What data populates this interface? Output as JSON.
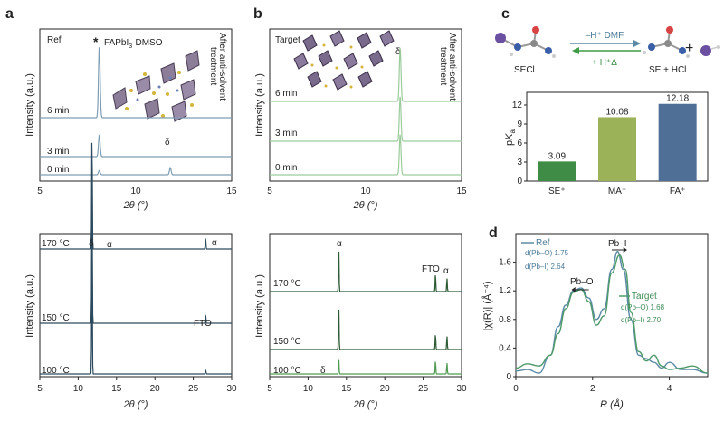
{
  "panels": {
    "a": {
      "letter": "a",
      "top": {
        "corner_label": "Ref",
        "peak_star": "*",
        "peak_label": "FAPbI",
        "peak_sub": "3",
        "peak_label_tail": "·DMSO",
        "delta": "δ",
        "side_text_1": "After anti-solvent",
        "side_text_2": "treatment",
        "traces": [
          "6 min",
          "3 min",
          "0 min"
        ],
        "xlabel": "2θ (°)",
        "ylabel": "Intensity (a.u.)",
        "xticks": [
          "5",
          "10",
          "15"
        ]
      },
      "bottom": {
        "traces": [
          "170 °C",
          "150 °C",
          "100 °C"
        ],
        "annotations": {
          "delta": "δ",
          "alpha1": "α",
          "alpha2": "α",
          "fto": "FTO"
        },
        "xlabel": "2θ (°)",
        "ylabel": "Intensity (a.u.)",
        "xticks": [
          "5",
          "10",
          "15",
          "20",
          "25",
          "30"
        ]
      }
    },
    "b": {
      "letter": "b",
      "top": {
        "corner_label": "Target",
        "delta": "δ",
        "side_text_1": "After anti-solvent",
        "side_text_2": "treatment",
        "traces": [
          "6 min",
          "3 min",
          "0 min"
        ],
        "xlabel": "2θ (°)",
        "ylabel": "Intensity (a.u.)",
        "xticks": [
          "5",
          "10",
          "15"
        ]
      },
      "bottom": {
        "traces": [
          "170 °C",
          "150 °C",
          "100 °C"
        ],
        "annotations": {
          "alpha1": "α",
          "fto": "FTO",
          "alpha2": "α",
          "delta": "δ"
        },
        "xlabel": "2θ (°)",
        "ylabel": "Intensity (a.u.)",
        "xticks": [
          "5",
          "10",
          "15",
          "20",
          "25",
          "30"
        ]
      }
    },
    "c": {
      "letter": "c",
      "reaction": {
        "forward": "–H⁺ DMF",
        "backward": "+ H⁺Δ",
        "left": "SECl",
        "right": "SE + HCl",
        "plus": "+"
      },
      "ylabel": "pKa"
    },
    "d": {
      "letter": "d",
      "ref_label": "Ref",
      "target_label": "Target",
      "ref_d1_label": "d(Pb–O) 1.75",
      "ref_d2_label": "d(Pb–I) 2.64",
      "tgt_d1_label": "d(Pb–O) 1.68",
      "tgt_d2_label": "d(Pb–I) 2.70",
      "peak1": "Pb–O",
      "peak2": "Pb–I",
      "xlabel": "R (Å)",
      "ylabel": "|χ(R)| (Å⁻⁴)",
      "xticks": [
        "0",
        "2",
        "4"
      ],
      "yticks": [
        "0",
        "0.4",
        "0.8",
        "1.2",
        "1.6"
      ]
    }
  },
  "chart_data": [
    {
      "id": "a-top",
      "type": "line",
      "title": "",
      "xlabel": "2θ (°)",
      "ylabel": "Intensity (a.u.)",
      "xlim": [
        5,
        15
      ],
      "series": [
        {
          "name": "6 min",
          "peaks": [
            {
              "x": 8.1,
              "h": 1.0
            }
          ],
          "color": "#7d9db5"
        },
        {
          "name": "3 min",
          "peaks": [
            {
              "x": 8.1,
              "h": 0.3
            }
          ],
          "color": "#7d9db5"
        },
        {
          "name": "0 min",
          "peaks": [
            {
              "x": 8.1,
              "h": 0.06
            },
            {
              "x": 11.8,
              "h": 0.1
            }
          ],
          "color": "#7d9db5"
        }
      ]
    },
    {
      "id": "b-top",
      "type": "line",
      "title": "",
      "xlabel": "2θ (°)",
      "ylabel": "Intensity (a.u.)",
      "xlim": [
        5,
        15
      ],
      "series": [
        {
          "name": "6 min",
          "peaks": [
            {
              "x": 11.8,
              "h": 0.6
            }
          ],
          "color": "#9ccc9c"
        },
        {
          "name": "3 min",
          "peaks": [
            {
              "x": 11.8,
              "h": 0.5
            }
          ],
          "color": "#9ccc9c"
        },
        {
          "name": "0 min",
          "peaks": [
            {
              "x": 11.8,
              "h": 0.45
            }
          ],
          "color": "#9ccc9c"
        }
      ]
    },
    {
      "id": "c-bars",
      "type": "bar",
      "title": "",
      "xlabel": "",
      "ylabel": "pKa",
      "ylim": [
        0,
        14
      ],
      "yticks": [
        0,
        3,
        6,
        9,
        12
      ],
      "categories": [
        "SE⁺",
        "MA⁺",
        "FA⁺"
      ],
      "values": [
        3.09,
        10.08,
        12.18
      ],
      "value_labels": [
        "3.09",
        "10.08",
        "12.18"
      ],
      "colors": [
        "#3e8c45",
        "#9cb259",
        "#4f6f96"
      ]
    },
    {
      "id": "a-bottom",
      "type": "line",
      "title": "",
      "xlabel": "2θ (°)",
      "ylabel": "Intensity (a.u.)",
      "xlim": [
        5,
        30
      ],
      "series": [
        {
          "name": "170 °C",
          "peaks": [
            {
              "x": 11.8,
              "h": 0.5
            },
            {
              "x": 26.6,
              "h": 0.05
            }
          ],
          "color": "#2c4a5e"
        },
        {
          "name": "150 °C",
          "peaks": [
            {
              "x": 11.8,
              "h": 0.55
            },
            {
              "x": 26.6,
              "h": 0.04
            }
          ],
          "color": "#2c4a5e"
        },
        {
          "name": "100 °C",
          "peaks": [
            {
              "x": 11.8,
              "h": 0.55
            },
            {
              "x": 26.6,
              "h": 0.02
            }
          ],
          "color": "#2c4a5e"
        }
      ]
    },
    {
      "id": "b-bottom",
      "type": "line",
      "title": "",
      "xlabel": "2θ (°)",
      "ylabel": "Intensity (a.u.)",
      "xlim": [
        5,
        30
      ],
      "series": [
        {
          "name": "170 °C",
          "peaks": [
            {
              "x": 14.0,
              "h": 1.0
            },
            {
              "x": 26.6,
              "h": 0.4
            },
            {
              "x": 28.1,
              "h": 0.3
            }
          ],
          "color": "#2e5a35"
        },
        {
          "name": "150 °C",
          "peaks": [
            {
              "x": 14.0,
              "h": 1.0
            },
            {
              "x": 26.6,
              "h": 0.35
            },
            {
              "x": 28.1,
              "h": 0.3
            }
          ],
          "color": "#2e5a35"
        },
        {
          "name": "100 °C",
          "peaks": [
            {
              "x": 14.0,
              "h": 0.35
            },
            {
              "x": 26.6,
              "h": 0.3
            },
            {
              "x": 28.1,
              "h": 0.25
            }
          ],
          "color": "#4f9a4f"
        }
      ]
    },
    {
      "id": "d-exafs",
      "type": "line",
      "title": "",
      "xlabel": "R (Å)",
      "ylabel": "|χ(R)| (Å⁻⁴)",
      "xlim": [
        0,
        5
      ],
      "ylim": [
        0,
        2.0
      ],
      "series": [
        {
          "name": "Ref",
          "color": "#5b8aa6",
          "x": [
            0,
            0.3,
            0.6,
            0.9,
            1.1,
            1.3,
            1.5,
            1.7,
            1.9,
            2.1,
            2.3,
            2.5,
            2.65,
            2.8,
            3.0,
            3.2,
            3.4,
            3.6,
            3.8,
            4.0,
            4.3,
            4.6,
            5.0
          ],
          "y": [
            0.08,
            0.1,
            0.05,
            0.3,
            0.7,
            1.0,
            1.2,
            1.24,
            1.1,
            0.8,
            0.95,
            1.5,
            1.75,
            1.5,
            0.8,
            0.3,
            0.25,
            0.2,
            0.12,
            0.2,
            0.1,
            0.1,
            0.05
          ]
        },
        {
          "name": "Target",
          "color": "#4f9a6a",
          "x": [
            0,
            0.3,
            0.6,
            0.9,
            1.1,
            1.3,
            1.5,
            1.7,
            1.9,
            2.1,
            2.3,
            2.5,
            2.7,
            2.85,
            3.0,
            3.2,
            3.4,
            3.6,
            3.8,
            4.0,
            4.3,
            4.6,
            5.0
          ],
          "y": [
            0.12,
            0.18,
            0.15,
            0.3,
            0.6,
            0.95,
            1.18,
            1.22,
            1.05,
            0.72,
            0.85,
            1.45,
            1.7,
            1.5,
            0.9,
            0.35,
            0.22,
            0.3,
            0.15,
            0.1,
            0.12,
            0.15,
            0.05
          ]
        }
      ]
    }
  ]
}
